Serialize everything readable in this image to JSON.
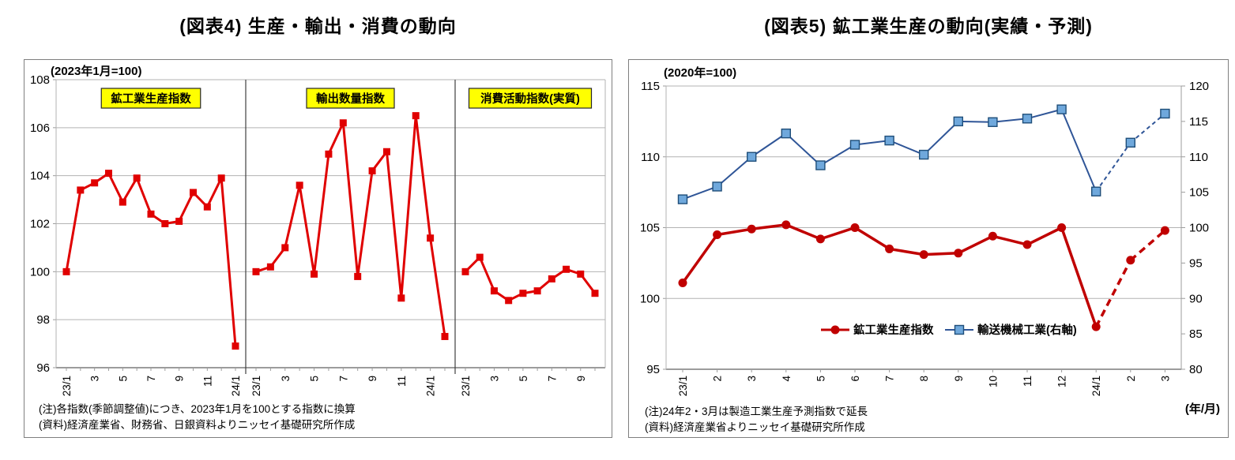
{
  "chart_data": [
    {
      "type": "line",
      "title": "(図表4) 生産・輸出・消費の動向",
      "unit_note": "(2023年1月=100)",
      "ylim": [
        96,
        108
      ],
      "yticks": [
        96,
        98,
        100,
        102,
        104,
        106,
        108
      ],
      "line_color": "#e00000",
      "label_box_fill": "#ffff00",
      "label_box_border": "#262626",
      "panels": [
        {
          "label": "鉱工業生産指数",
          "categories": [
            "23/1",
            "2",
            "3",
            "4",
            "5",
            "6",
            "7",
            "8",
            "9",
            "10",
            "11",
            "12",
            "24/1"
          ],
          "shown_tick_indices": [
            0,
            2,
            4,
            6,
            8,
            10,
            12
          ],
          "values": [
            100.0,
            103.4,
            103.7,
            104.1,
            102.9,
            103.9,
            102.4,
            102.0,
            102.1,
            103.3,
            102.7,
            103.9,
            96.9
          ]
        },
        {
          "label": "輸出数量指数",
          "categories": [
            "23/1",
            "2",
            "3",
            "4",
            "5",
            "6",
            "7",
            "8",
            "9",
            "10",
            "11",
            "12",
            "24/1",
            "2"
          ],
          "shown_tick_indices": [
            0,
            2,
            4,
            6,
            8,
            10,
            12
          ],
          "values": [
            100.0,
            100.2,
            101.0,
            103.6,
            99.9,
            104.9,
            106.2,
            99.8,
            104.2,
            105.0,
            98.9,
            106.5,
            101.4,
            97.3
          ]
        },
        {
          "label": "消費活動指数(実質)",
          "categories": [
            "23/1",
            "2",
            "3",
            "4",
            "5",
            "6",
            "7",
            "8",
            "9",
            "10"
          ],
          "shown_tick_indices": [
            0,
            2,
            4,
            6,
            8
          ],
          "values": [
            100.0,
            100.6,
            99.2,
            98.8,
            99.1,
            99.2,
            99.7,
            100.1,
            99.9,
            99.1
          ]
        }
      ],
      "notes": [
        "(注)各指数(季節調整値)につき、2023年1月を100とする指数に換算",
        "(資料)経済産業省、財務省、日銀資料よりニッセイ基礎研究所作成"
      ]
    },
    {
      "type": "line",
      "title": "(図表5) 鉱工業生産の動向(実績・予測)",
      "unit_note": "(2020年=100)",
      "left_axis": {
        "lim": [
          95,
          115
        ],
        "ticks": [
          95,
          100,
          105,
          110,
          115
        ]
      },
      "right_axis": {
        "lim": [
          80,
          120
        ],
        "ticks": [
          80,
          85,
          90,
          95,
          100,
          105,
          110,
          115,
          120
        ]
      },
      "categories": [
        "23/1",
        "2",
        "3",
        "4",
        "5",
        "6",
        "7",
        "8",
        "9",
        "10",
        "11",
        "12",
        "24/1",
        "2",
        "3"
      ],
      "xlabel": "(年/月)",
      "forecast_start_index": 12,
      "series": [
        {
          "name": "鉱工業生産指数",
          "axis": "left",
          "marker": "circle",
          "color": "#c00000",
          "marker_fill": "#c00000",
          "values": [
            101.1,
            104.5,
            104.9,
            105.2,
            104.2,
            105.0,
            103.5,
            103.1,
            103.2,
            104.4,
            103.8,
            105.0,
            98.0,
            102.7,
            104.8
          ]
        },
        {
          "name": "輸送機械工業(右軸)",
          "axis": "right",
          "marker": "square",
          "color": "#2f5597",
          "marker_fill": "#6fa8dc",
          "marker_border": "#1f4e79",
          "values": [
            104.0,
            105.8,
            110.0,
            113.3,
            108.8,
            111.7,
            112.3,
            110.3,
            115.0,
            114.9,
            115.4,
            116.7,
            105.1,
            112.0,
            116.1
          ]
        }
      ],
      "notes": [
        "(注)24年2・3月は製造工業生産予測指数で延長",
        "(資料)経済産業省よりニッセイ基礎研究所作成"
      ]
    }
  ]
}
